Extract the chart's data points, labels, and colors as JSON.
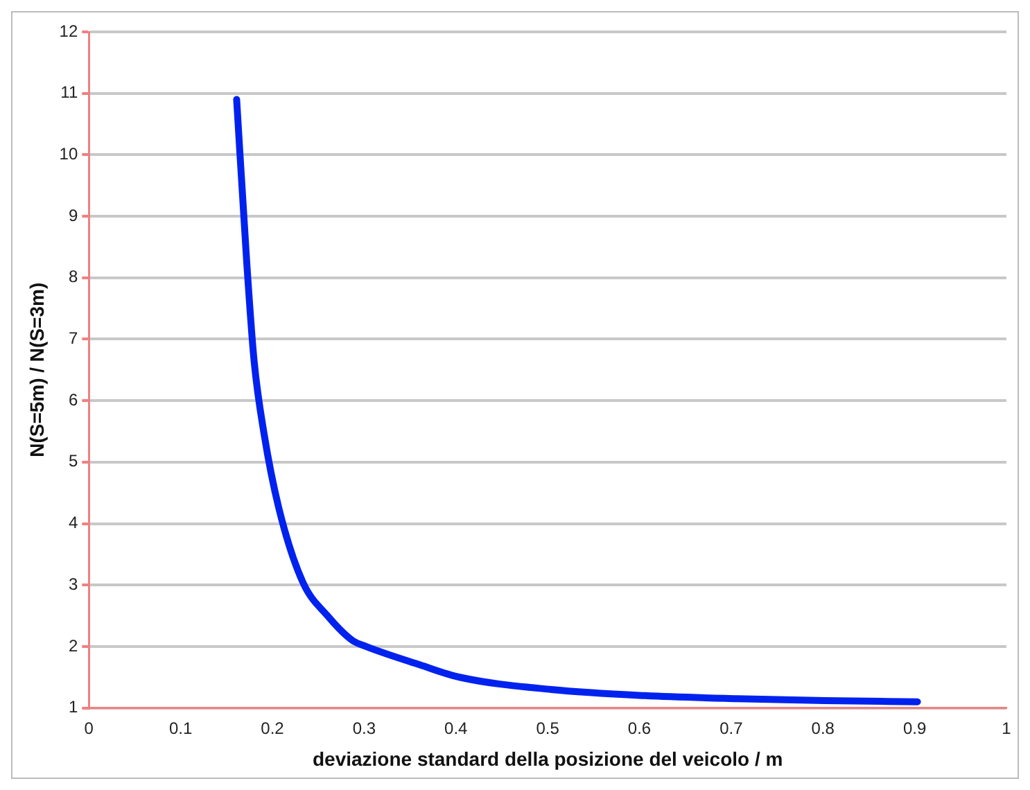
{
  "chart_data": {
    "type": "line",
    "xlabel": "deviazione standard della posizione del veicolo / m",
    "ylabel": "N(S=5m) / N(S=3m)",
    "x": [
      0.161,
      0.172,
      0.18,
      0.191,
      0.207,
      0.233,
      0.26,
      0.287,
      0.302,
      0.361,
      0.404,
      0.504,
      0.606,
      0.707,
      0.802,
      0.903
    ],
    "series": [
      {
        "color": "#0022ee",
        "values": [
          10.9,
          8.25,
          6.65,
          5.45,
          4.25,
          3.05,
          2.5,
          2.1,
          2.0,
          1.7,
          1.5,
          1.3,
          1.2,
          1.15,
          1.12,
          1.1
        ]
      }
    ],
    "xlim": [
      0,
      1
    ],
    "xticks": [
      0,
      0.1,
      0.2,
      0.3,
      0.4,
      0.5,
      0.6,
      0.7,
      0.8,
      0.9,
      1
    ],
    "ylim": [
      1,
      12
    ],
    "yticks": [
      1,
      2,
      3,
      4,
      5,
      6,
      7,
      8,
      9,
      10,
      11,
      12
    ],
    "grid": "y",
    "legend": false,
    "marker": "none",
    "line_style": "solid"
  }
}
